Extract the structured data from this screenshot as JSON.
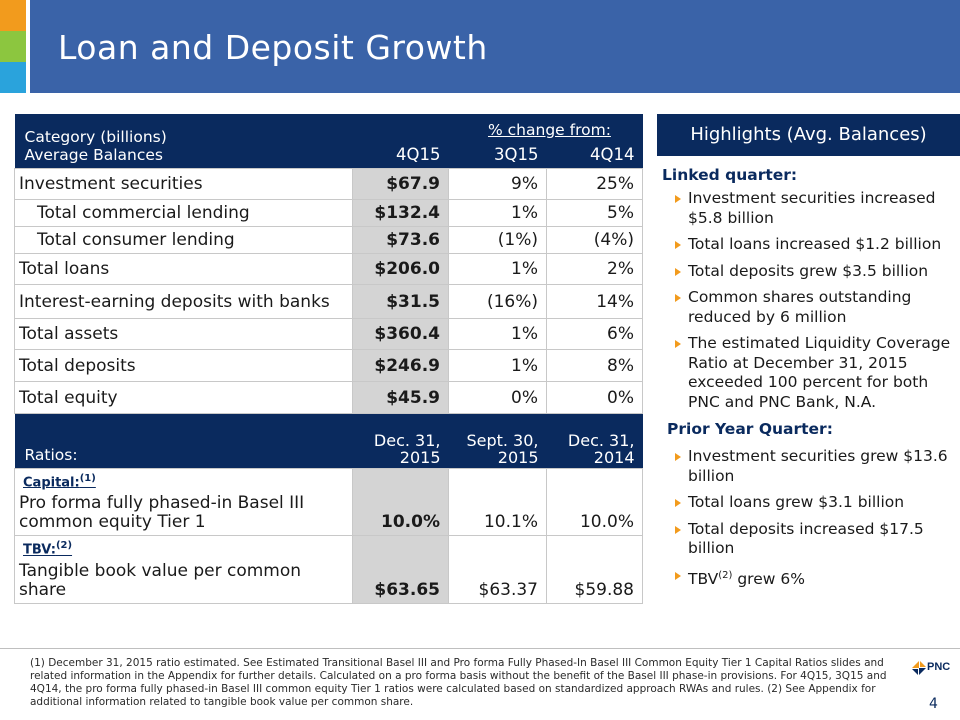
{
  "header": {
    "title": "Loan and Deposit Growth"
  },
  "table": {
    "header": {
      "category": "Category (billions)",
      "average": "Average Balances",
      "pct_change": "% change from:",
      "cols": [
        "4Q15",
        "3Q15",
        "4Q14"
      ]
    },
    "rows": [
      {
        "label": "Investment securities",
        "v": "$67.9",
        "c1": "9%",
        "c2": "25%"
      },
      {
        "label": "Total commercial lending",
        "v": "$132.4",
        "c1": "1%",
        "c2": "5%"
      },
      {
        "label": "Total consumer lending",
        "v": "$73.6",
        "c1": "(1%)",
        "c2": "(4%)"
      },
      {
        "label": "Total loans",
        "v": "$206.0",
        "c1": "1%",
        "c2": "2%"
      },
      {
        "label": "Interest-earning deposits with banks",
        "v": "$31.5",
        "c1": "(16%)",
        "c2": "14%"
      },
      {
        "label": "Total assets",
        "v": "$360.4",
        "c1": "1%",
        "c2": "6%"
      },
      {
        "label": "Total deposits",
        "v": "$246.9",
        "c1": "1%",
        "c2": "8%"
      },
      {
        "label": "Total equity",
        "v": "$45.9",
        "c1": "0%",
        "c2": "0%"
      }
    ],
    "ratios": {
      "label": "Ratios:",
      "cols": [
        {
          "l1": "Dec. 31,",
          "l2": "2015"
        },
        {
          "l1": "Sept. 30,",
          "l2": "2015"
        },
        {
          "l1": "Dec. 31,",
          "l2": "2014"
        }
      ],
      "capital": {
        "tag": "Capital:",
        "sup": "(1)",
        "label": "Pro forma fully phased-in Basel III common equity Tier 1",
        "v1": "10.0%",
        "v2": "10.1%",
        "v3": "10.0%"
      },
      "tbv": {
        "tag": "TBV:",
        "sup": "(2)",
        "label": "Tangible book value per common share",
        "v1": "$63.65",
        "v2": "$63.37",
        "v3": "$59.88"
      }
    }
  },
  "highlights": {
    "title": "Highlights (Avg. Balances)",
    "linked_title": "Linked quarter:",
    "linked": [
      "Investment securities increased $5.8 billion",
      "Total loans increased $1.2 billion",
      "Total deposits grew $3.5 billion",
      "Common shares outstanding reduced by 6 million",
      "The estimated Liquidity Coverage Ratio at December 31, 2015 exceeded 100 percent for both PNC and PNC Bank, N.A."
    ],
    "prior_title": "Prior Year Quarter:",
    "prior": [
      "Investment securities grew $13.6 billion",
      "Total loans grew $3.1 billion",
      "Total deposits increased $17.5 billion"
    ],
    "tbv_prefix": "TBV",
    "tbv_sup": "(2)",
    "tbv_suffix": " grew 6%"
  },
  "footer": {
    "note": "(1) December 31, 2015 ratio estimated. See Estimated Transitional Basel III and Pro forma Fully Phased-In Basel III Common Equity Tier 1 Capital Ratios slides and related information in the Appendix for further details. Calculated on a pro forma basis without the benefit of the Basel III phase-in provisions. For 4Q15, 3Q15 and 4Q14, the pro forma fully phased-in Basel III common equity Tier 1 ratios were calculated based on standardized approach RWAs and rules. (2) See Appendix for additional information related to tangible book value per common share.",
    "logo": "PNC",
    "page": "4"
  },
  "colors": {
    "navy": "#0a2a5e",
    "header_blue": "#3a63a8",
    "orange": "#f29b1d",
    "green": "#8cc63f",
    "cyan": "#2aa3dc",
    "shade": "#d4d4d4"
  }
}
